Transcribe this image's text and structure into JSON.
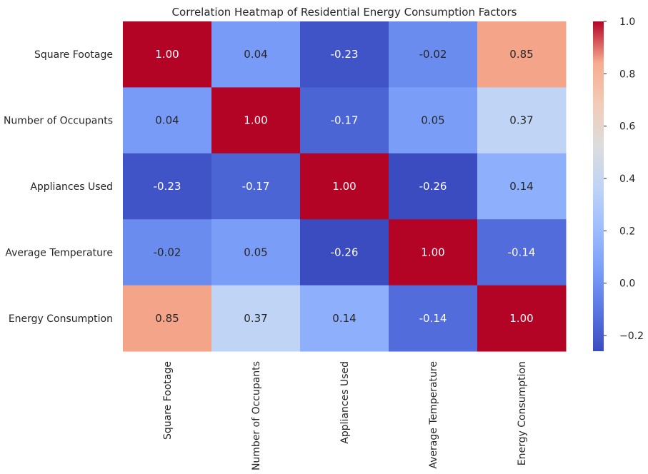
{
  "chart_data": {
    "type": "heatmap",
    "title": "Correlation Heatmap of Residential Energy Consumption Factors",
    "rows": [
      "Square Footage",
      "Number of Occupants",
      "Appliances Used",
      "Average Temperature",
      "Energy Consumption"
    ],
    "columns": [
      "Square Footage",
      "Number of Occupants",
      "Appliances Used",
      "Average Temperature",
      "Energy Consumption"
    ],
    "values": [
      [
        1.0,
        0.04,
        -0.23,
        -0.02,
        0.85
      ],
      [
        0.04,
        1.0,
        -0.17,
        0.05,
        0.37
      ],
      [
        -0.23,
        -0.17,
        1.0,
        -0.26,
        0.14
      ],
      [
        -0.02,
        0.05,
        -0.26,
        1.0,
        -0.14
      ],
      [
        0.85,
        0.37,
        0.14,
        -0.14,
        1.0
      ]
    ],
    "cell_labels": [
      [
        "1.00",
        "0.04",
        "-0.23",
        "-0.02",
        "0.85"
      ],
      [
        "0.04",
        "1.00",
        "-0.17",
        "0.05",
        "0.37"
      ],
      [
        "-0.23",
        "-0.17",
        "1.00",
        "-0.26",
        "0.14"
      ],
      [
        "-0.02",
        "0.05",
        "-0.26",
        "1.00",
        "-0.14"
      ],
      [
        "0.85",
        "0.37",
        "0.14",
        "-0.14",
        "1.00"
      ]
    ],
    "colormap": "coolwarm",
    "vmin": -0.26,
    "vmax": 1.0,
    "colorbar": {
      "ticks": [
        -0.2,
        0.0,
        0.2,
        0.4,
        0.6,
        0.8,
        1.0
      ],
      "tick_labels": [
        "−0.2",
        "0.0",
        "0.2",
        "0.4",
        "0.6",
        "0.8",
        "1.0"
      ]
    },
    "x_tick_rotation": "vertical",
    "grid": false
  }
}
